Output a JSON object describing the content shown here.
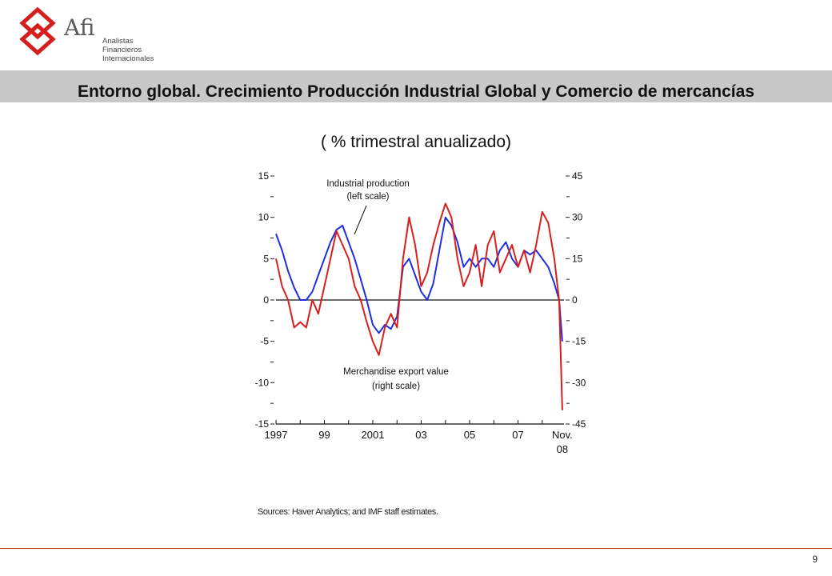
{
  "header": {
    "logo_mark": "Afi",
    "logo_lines": [
      "Analistas",
      "Financieros",
      "Internacionales"
    ]
  },
  "title": "Entorno global. Crecimiento Producción Industrial Global y Comercio de mercancías",
  "subtitle": "( % trimestral anualizado)",
  "source_note": "Sources: Haver Analytics; and IMF staff estimates.",
  "page_number": "9",
  "colors": {
    "industrial": "#1f2fe0",
    "exports": "#d91e1e",
    "band": "#c8c8c8",
    "rule": "#c0392b"
  },
  "chart_data": {
    "type": "line",
    "x_tick_labels": [
      "1997",
      "99",
      "2001",
      "03",
      "05",
      "07",
      "Nov.\n08"
    ],
    "x_ticks": [
      1997,
      1999,
      2001,
      2003,
      2005,
      2007,
      2008.83
    ],
    "xlim": [
      1997,
      2008.9
    ],
    "left_axis": {
      "ylim": [
        -15,
        15
      ],
      "tick_labels": [
        "15",
        "10",
        "5",
        "0",
        "-5",
        "-10",
        "-15"
      ],
      "ticks": [
        15,
        10,
        5,
        0,
        -5,
        -10,
        -15
      ]
    },
    "right_axis": {
      "ylim": [
        -45,
        45
      ],
      "tick_labels": [
        "45",
        "30",
        "15",
        "0",
        "-15",
        "-30",
        "-45"
      ],
      "ticks": [
        45,
        30,
        15,
        0,
        -15,
        -30,
        -45
      ]
    },
    "annotations": [
      {
        "text": "Industrial production\n(left scale)"
      },
      {
        "text": "Merchandise export value\n(right scale)"
      }
    ],
    "series": [
      {
        "name": "Industrial production (left scale)",
        "axis": "left",
        "x": [
          1997.0,
          1997.25,
          1997.5,
          1997.75,
          1998.0,
          1998.25,
          1998.5,
          1998.75,
          1999.0,
          1999.25,
          1999.5,
          1999.75,
          2000.0,
          2000.25,
          2000.5,
          2000.75,
          2001.0,
          2001.25,
          2001.5,
          2001.75,
          2002.0,
          2002.25,
          2002.5,
          2002.75,
          2003.0,
          2003.25,
          2003.5,
          2003.75,
          2004.0,
          2004.25,
          2004.5,
          2004.75,
          2005.0,
          2005.25,
          2005.5,
          2005.75,
          2006.0,
          2006.25,
          2006.5,
          2006.75,
          2007.0,
          2007.25,
          2007.5,
          2007.75,
          2008.0,
          2008.25,
          2008.5,
          2008.7,
          2008.83
        ],
        "values": [
          8,
          6,
          3.5,
          1.5,
          0,
          0,
          1,
          3,
          5,
          7,
          8.5,
          9,
          7,
          5,
          2.5,
          0,
          -3,
          -4,
          -3,
          -3.5,
          -2,
          4,
          5,
          3,
          1,
          0,
          2,
          6,
          10,
          9,
          7,
          4,
          5,
          4,
          5,
          5,
          4,
          6,
          7,
          5,
          4,
          6,
          5.5,
          6,
          5,
          4,
          2,
          0,
          -5
        ]
      },
      {
        "name": "Merchandise export value (right scale)",
        "axis": "right",
        "x": [
          1997.0,
          1997.25,
          1997.5,
          1997.75,
          1998.0,
          1998.25,
          1998.5,
          1998.75,
          1999.0,
          1999.25,
          1999.5,
          1999.75,
          2000.0,
          2000.25,
          2000.5,
          2000.75,
          2001.0,
          2001.25,
          2001.5,
          2001.75,
          2002.0,
          2002.25,
          2002.5,
          2002.75,
          2003.0,
          2003.25,
          2003.5,
          2003.75,
          2004.0,
          2004.25,
          2004.5,
          2004.75,
          2005.0,
          2005.25,
          2005.5,
          2005.75,
          2006.0,
          2006.25,
          2006.5,
          2006.75,
          2007.0,
          2007.25,
          2007.5,
          2007.75,
          2008.0,
          2008.25,
          2008.5,
          2008.7,
          2008.83
        ],
        "values": [
          15,
          5,
          0,
          -10,
          -8,
          -10,
          0,
          -5,
          5,
          15,
          25,
          20,
          15,
          5,
          0,
          -8,
          -15,
          -20,
          -10,
          -5,
          -10,
          15,
          30,
          20,
          5,
          10,
          20,
          28,
          35,
          30,
          15,
          5,
          10,
          20,
          5,
          20,
          25,
          10,
          15,
          20,
          12,
          18,
          10,
          20,
          32,
          28,
          15,
          0,
          -40
        ]
      }
    ]
  }
}
